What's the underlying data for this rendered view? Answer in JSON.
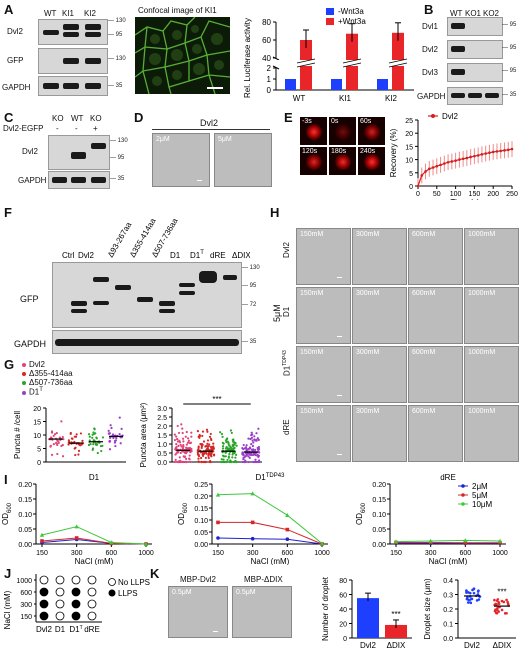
{
  "panelA": {
    "letter": "A",
    "lanes": [
      "WT",
      "KI1",
      "KI2"
    ],
    "rows": [
      "Dvl2",
      "GFP",
      "GAPDH"
    ],
    "mw": [
      "130",
      "95",
      "130",
      "35"
    ],
    "confocal_title": "Confocal image of KI1",
    "chart_data": {
      "type": "bar",
      "categories": [
        "WT",
        "KI1",
        "KI2"
      ],
      "series": [
        {
          "name": "-Wnt3a",
          "values": [
            1,
            1,
            1
          ],
          "color": "#1f3fff"
        },
        {
          "name": "+Wnt3a",
          "values": [
            60,
            67,
            68
          ],
          "color": "#e8262a"
        }
      ],
      "ylabel": "Rel. Luciferase activity",
      "yticks_low": [
        "0",
        "1",
        "2"
      ],
      "yticks_high": [
        "40",
        "60",
        "80"
      ]
    }
  },
  "panelB": {
    "letter": "B",
    "lanes": [
      "WT",
      "KO1",
      "KO2"
    ],
    "rows": [
      "Dvl1",
      "Dvl2",
      "Dvl3",
      "GAPDH"
    ],
    "mw": [
      "95",
      "95",
      "95",
      "35"
    ]
  },
  "panelC": {
    "letter": "C",
    "lanes": [
      "KO",
      "WT",
      "KO"
    ],
    "construct": "Dvl2-EGFP",
    "signs": [
      "-",
      "-",
      "+"
    ],
    "rows": [
      "Dvl2",
      "GAPDH"
    ],
    "mw": [
      "130",
      "95",
      "35"
    ]
  },
  "panelD": {
    "letter": "D",
    "title": "Dvl2",
    "conc": [
      "2μM",
      "5μM"
    ]
  },
  "panelE": {
    "letter": "E",
    "times": [
      "-3s",
      "0s",
      "60s",
      "120s",
      "180s",
      "240s"
    ],
    "chart_data": {
      "type": "line",
      "series": [
        {
          "name": "Dvl2",
          "color": "#d32020",
          "x": [
            0,
            10,
            20,
            30,
            40,
            50,
            60,
            70,
            80,
            90,
            100,
            110,
            120,
            130,
            140,
            150,
            160,
            170,
            180,
            190,
            200,
            210,
            220,
            230,
            240,
            250
          ],
          "y": [
            0,
            4,
            5.5,
            6.5,
            7,
            7.5,
            8,
            8.5,
            9,
            9.3,
            9.6,
            10,
            10.3,
            10.6,
            11,
            11.3,
            11.6,
            12,
            12.3,
            12.6,
            12.9,
            13.1,
            13.3,
            13.5,
            13.7,
            14
          ]
        }
      ],
      "xlabel": "Time (s)",
      "ylabel": "Recovery (%)",
      "xlim": [
        0,
        250
      ],
      "ylim": [
        0,
        25
      ],
      "xticks": [
        "0",
        "50",
        "100",
        "150",
        "200",
        "250"
      ],
      "yticks": [
        "0",
        "5",
        "10",
        "15",
        "20",
        "25"
      ]
    }
  },
  "panelF": {
    "letter": "F",
    "lanes": [
      "Ctrl",
      "Dvl2",
      "Δ93-267aa",
      "Δ355-414aa",
      "Δ507-736aa",
      "D1",
      "D1",
      "dRE",
      "ΔDIX"
    ],
    "d1_sup": "T",
    "rows": [
      "GFP",
      "GAPDH"
    ],
    "mw": [
      "130",
      "95",
      "72",
      "35"
    ]
  },
  "panelG": {
    "letter": "G",
    "legend": [
      "Dvl2",
      "Δ355-414aa",
      "Δ507-736aa",
      "D1"
    ],
    "legend_sup": "T",
    "colors": [
      "#e0447a",
      "#d42828",
      "#2aa42a",
      "#9a3fc8"
    ],
    "chart_left": {
      "type": "scatter",
      "ylabel": "Puncta # /cell",
      "ylim": [
        0,
        20
      ],
      "yticks": [
        "0",
        "5",
        "10",
        "15",
        "20"
      ],
      "means": [
        8.5,
        7,
        7.5,
        9.5
      ]
    },
    "chart_right": {
      "type": "scatter",
      "ylabel": "Puncta area (μm²)",
      "ylim": [
        0,
        3
      ],
      "yticks": [
        "0.0",
        "0.5",
        "1.0",
        "1.5",
        "2.0",
        "2.5",
        "3.0"
      ],
      "means": [
        0.65,
        0.6,
        0.6,
        0.55
      ],
      "significance": "***"
    }
  },
  "panelH": {
    "letter": "H",
    "rows": [
      "Dvl2",
      "D1",
      "D1",
      "dRE"
    ],
    "row_sup": [
      "",
      "",
      "TDP43",
      ""
    ],
    "cols": [
      "150mM",
      "300mM",
      "600mM",
      "1000mM"
    ],
    "side": "5μM"
  },
  "panelI": {
    "letter": "I",
    "legend": [
      "2μM",
      "5μM",
      "10μM"
    ],
    "legend_colors": [
      "#2020d0",
      "#d42828",
      "#3cc83c"
    ],
    "xlabel": "NaCl (mM)",
    "xcats": [
      "150",
      "300",
      "600",
      "1000"
    ],
    "ylabel": "OD",
    "ylabel_sub": "600",
    "charts": [
      {
        "title": "D1",
        "title_sup": "",
        "ylim": [
          0,
          0.2
        ],
        "yticks": [
          "0.00",
          "0.05",
          "0.10",
          "0.15",
          "0.20"
        ],
        "series": [
          [
            0.005,
            0.015,
            0.002,
            0.0
          ],
          [
            0.01,
            0.02,
            0.002,
            0.0
          ],
          [
            0.03,
            0.058,
            0.005,
            0.0
          ]
        ]
      },
      {
        "title": "D1",
        "title_sup": "TDP43",
        "ylim": [
          0,
          0.25
        ],
        "yticks": [
          "0.00",
          "0.05",
          "0.10",
          "0.15",
          "0.20",
          "0.25"
        ],
        "series": [
          [
            0.025,
            0.022,
            0.02,
            0.0
          ],
          [
            0.09,
            0.09,
            0.06,
            0.0
          ],
          [
            0.205,
            0.21,
            0.12,
            0.002
          ]
        ]
      },
      {
        "title": "dRE",
        "title_sup": "",
        "ylim": [
          0,
          0.2
        ],
        "yticks": [
          "0.00",
          "0.05",
          "0.10",
          "0.15",
          "0.20"
        ],
        "series": [
          [
            0.002,
            0.002,
            0.002,
            0.002
          ],
          [
            0.005,
            0.005,
            0.004,
            0.004
          ],
          [
            0.008,
            0.01,
            0.012,
            0.01
          ]
        ]
      }
    ]
  },
  "panelJ": {
    "letter": "J",
    "ylabel": "NaCl (mM)",
    "yrows": [
      "1000",
      "600",
      "300",
      "150"
    ],
    "cols": [
      "Dvl2",
      "D1",
      "D1",
      "dRE"
    ],
    "col_sup": [
      "",
      "",
      "T",
      ""
    ],
    "grid": [
      [
        false,
        false,
        false,
        false
      ],
      [
        true,
        false,
        true,
        false
      ],
      [
        true,
        false,
        true,
        false
      ],
      [
        true,
        false,
        true,
        false
      ]
    ],
    "legend": [
      "No LLPS",
      "LLPS"
    ]
  },
  "panelK": {
    "letter": "K",
    "images": [
      "MBP-Dvl2",
      "MBP-ΔDIX"
    ],
    "conc": [
      "0.5μM",
      "0.5μM"
    ],
    "chart_count": {
      "type": "bar",
      "ylabel": "Number of droplet",
      "categories": [
        "Dvl2",
        "ΔDIX"
      ],
      "values": [
        55,
        18
      ],
      "colors": [
        "#1f3fff",
        "#e8262a"
      ],
      "ylim": [
        0,
        80
      ],
      "yticks": [
        "0",
        "20",
        "40",
        "60",
        "80"
      ],
      "significance": "***"
    },
    "chart_size": {
      "type": "scatter",
      "ylabel": "Droplet size (μm)",
      "categories": [
        "Dvl2",
        "ΔDIX"
      ],
      "means": [
        0.29,
        0.22
      ],
      "colors": [
        "#1f3fff",
        "#e8262a"
      ],
      "ylim": [
        0,
        0.4
      ],
      "yticks": [
        "0.0",
        "0.1",
        "0.2",
        "0.3",
        "0.4"
      ],
      "significance": "***"
    }
  }
}
